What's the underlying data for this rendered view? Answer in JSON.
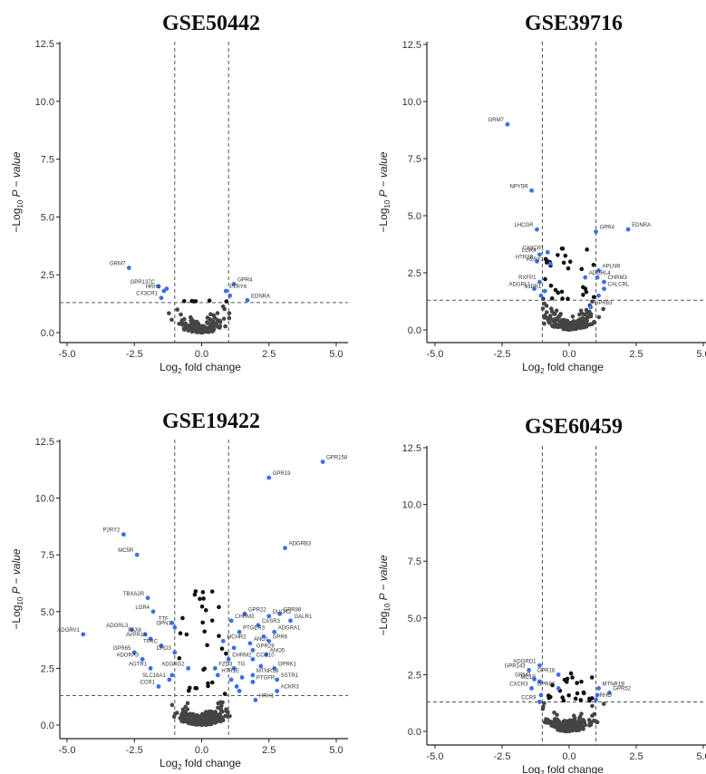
{
  "colors": {
    "significant": "#3d6ee6",
    "nonsignificant": "#454545",
    "background": "#ffffff"
  },
  "chart_data": [
    {
      "type": "scatter",
      "title": "GSE50442",
      "xlabel": "Log2 fold change",
      "ylabel": "-Log10 P-value",
      "xlim": [
        -6.2,
        5.4
      ],
      "ylim": [
        -0.5,
        12.8
      ],
      "xticks": [
        -5.0,
        -2.5,
        0.0,
        2.5,
        5.0
      ],
      "yticks": [
        0.0,
        2.5,
        5.0,
        7.5,
        10.0,
        12.5
      ],
      "thresholds": {
        "fc": [
          -1,
          1
        ],
        "p": 1.3
      },
      "labeled": [
        {
          "gene": "GRM7",
          "x": -2.7,
          "y": 2.8
        },
        {
          "gene": "GPR137C",
          "x": -1.6,
          "y": 2.0
        },
        {
          "gene": "HRH1",
          "x": -1.4,
          "y": 1.8
        },
        {
          "gene": "CX3CR1",
          "x": -1.5,
          "y": 1.5
        },
        {
          "gene": "GPR4",
          "x": 1.2,
          "y": 2.1
        },
        {
          "gene": "P2RY6",
          "x": 0.9,
          "y": 1.8
        },
        {
          "gene": "EDNRA",
          "x": 1.7,
          "y": 1.4
        }
      ],
      "unlabeled_significant": [
        {
          "x": -1.3,
          "y": 1.9
        },
        {
          "x": 1.05,
          "y": 1.6
        }
      ]
    },
    {
      "type": "scatter",
      "title": "GSE39716",
      "xlabel": "Log2 fold change",
      "ylabel": "-Log10 P-value",
      "xlim": [
        -6.2,
        5.4
      ],
      "ylim": [
        -0.5,
        12.8
      ],
      "xticks": [
        -5.0,
        -2.5,
        0.0,
        2.5,
        5.0
      ],
      "yticks": [
        0.0,
        2.5,
        5.0,
        7.5,
        10.0,
        12.5
      ],
      "thresholds": {
        "fc": [
          -1,
          1
        ],
        "p": 1.3
      },
      "labeled": [
        {
          "gene": "GRM7",
          "x": -2.3,
          "y": 9.0
        },
        {
          "gene": "NPY5R",
          "x": -1.4,
          "y": 6.1
        },
        {
          "gene": "LHCGR",
          "x": -1.2,
          "y": 4.4
        },
        {
          "gene": "GPR4",
          "x": 1.0,
          "y": 4.3
        },
        {
          "gene": "EDNRA",
          "x": 2.2,
          "y": 4.4
        },
        {
          "gene": "CX3CR1",
          "x": -0.8,
          "y": 3.4
        },
        {
          "gene": "LGR4",
          "x": -1.1,
          "y": 3.3
        },
        {
          "gene": "HTR2B",
          "x": -1.2,
          "y": 3.0
        },
        {
          "gene": "P2RY12",
          "x": -0.7,
          "y": 2.9
        },
        {
          "gene": "APLNR",
          "x": 1.1,
          "y": 2.6
        },
        {
          "gene": "ADGRL4",
          "x": 0.6,
          "y": 2.3
        },
        {
          "gene": "RXFP1",
          "x": -1.1,
          "y": 2.1
        },
        {
          "gene": "CHRM3",
          "x": 1.3,
          "y": 2.1
        },
        {
          "gene": "CALCRL",
          "x": 1.3,
          "y": 1.8
        },
        {
          "gene": "ADGRL1",
          "x": -1.3,
          "y": 1.8
        },
        {
          "gene": "S1PR1",
          "x": -0.9,
          "y": 1.7
        },
        {
          "gene": "GPR83",
          "x": 0.8,
          "y": 1.0
        }
      ],
      "unlabeled_significant": [
        {
          "x": 1.05,
          "y": 2.3
        },
        {
          "x": -1.05,
          "y": 1.5
        },
        {
          "x": 1.1,
          "y": 1.5
        }
      ]
    },
    {
      "type": "scatter",
      "title": "GSE19422",
      "xlabel": "Log2 fold change",
      "ylabel": "-Log10 P-value",
      "xlim": [
        -6.2,
        5.4
      ],
      "ylim": [
        -0.5,
        12.8
      ],
      "xticks": [
        -5.0,
        -2.5,
        0.0,
        2.5,
        5.0
      ],
      "yticks": [
        0.0,
        2.5,
        5.0,
        7.5,
        10.0,
        12.5
      ],
      "thresholds": {
        "fc": [
          -1,
          1
        ],
        "p": 1.3
      },
      "labeled": [
        {
          "gene": "GPR158",
          "x": 4.5,
          "y": 11.6
        },
        {
          "gene": "GPR19",
          "x": 2.5,
          "y": 10.9
        },
        {
          "gene": "P2RY2",
          "x": -2.9,
          "y": 8.4
        },
        {
          "gene": "ADGRB3",
          "x": 3.1,
          "y": 7.8
        },
        {
          "gene": "MC5R",
          "x": -2.4,
          "y": 7.5
        },
        {
          "gene": "TBXA2R",
          "x": -2.0,
          "y": 5.6
        },
        {
          "gene": "GPR88",
          "x": 2.9,
          "y": 4.9
        },
        {
          "gene": "DUOX2",
          "x": 2.5,
          "y": 4.8
        },
        {
          "gene": "GPR22",
          "x": 1.6,
          "y": 4.9
        },
        {
          "gene": "LGR4",
          "x": -1.8,
          "y": 5.0
        },
        {
          "gene": "GALR1",
          "x": 3.3,
          "y": 4.6
        },
        {
          "gene": "CASR3",
          "x": 2.1,
          "y": 4.4
        },
        {
          "gene": "CHRM3",
          "x": 1.1,
          "y": 4.6
        },
        {
          "gene": "TTF",
          "x": -1.1,
          "y": 4.5
        },
        {
          "gene": "ADGRL3",
          "x": -2.6,
          "y": 4.2
        },
        {
          "gene": "ADGRV1",
          "x": -4.4,
          "y": 4.0
        },
        {
          "gene": "OPN3",
          "x": -1.0,
          "y": 4.3
        },
        {
          "gene": "PTGER3",
          "x": 1.4,
          "y": 4.1
        },
        {
          "gene": "ADGRA1",
          "x": 2.7,
          "y": 4.1
        },
        {
          "gene": "PAX6",
          "x": -2.1,
          "y": 4.0
        },
        {
          "gene": "AVPR1A",
          "x": -1.9,
          "y": 3.8
        },
        {
          "gene": "GPR6",
          "x": 2.5,
          "y": 3.7
        },
        {
          "gene": "MCHR2",
          "x": 0.8,
          "y": 3.7
        },
        {
          "gene": "ANO1",
          "x": 1.8,
          "y": 3.6
        },
        {
          "gene": "TFRC",
          "x": -1.5,
          "y": 3.5
        },
        {
          "gene": "GPR29",
          "x": 1.9,
          "y": 3.3
        },
        {
          "gene": "GPR65",
          "x": -2.5,
          "y": 3.2
        },
        {
          "gene": "DRD3",
          "x": -1.0,
          "y": 3.2
        },
        {
          "gene": "ANO5",
          "x": 2.4,
          "y": 3.1
        },
        {
          "gene": "ADORA3",
          "x": -2.2,
          "y": 2.9
        },
        {
          "gene": "CHRM2",
          "x": 1.0,
          "y": 2.9
        },
        {
          "gene": "CCR10",
          "x": 1.9,
          "y": 2.9
        },
        {
          "gene": "AGTR1",
          "x": -1.9,
          "y": 2.5
        },
        {
          "gene": "ADGRG2",
          "x": -0.5,
          "y": 2.5
        },
        {
          "gene": "FZD3",
          "x": 0.5,
          "y": 2.5
        },
        {
          "gene": "TG",
          "x": 1.2,
          "y": 2.5
        },
        {
          "gene": "OPRK1",
          "x": 2.7,
          "y": 2.5
        },
        {
          "gene": "HTR1E",
          "x": 0.6,
          "y": 2.2
        },
        {
          "gene": "MTNR1B",
          "x": 1.9,
          "y": 2.2
        },
        {
          "gene": "SLC16A1",
          "x": -1.2,
          "y": 2.0
        },
        {
          "gene": "SSTR1",
          "x": 2.8,
          "y": 2.0
        },
        {
          "gene": "PTGFR",
          "x": 1.9,
          "y": 1.9
        },
        {
          "gene": "CCR1",
          "x": -1.6,
          "y": 1.7
        },
        {
          "gene": "ACKR3",
          "x": 2.8,
          "y": 1.5
        },
        {
          "gene": "HRH1",
          "x": 2.0,
          "y": 1.1
        }
      ],
      "unlabeled_significant": [
        {
          "x": 1.1,
          "y": 2.0
        },
        {
          "x": 1.3,
          "y": 1.7
        },
        {
          "x": 1.5,
          "y": 2.1
        },
        {
          "x": 1.2,
          "y": 3.4
        },
        {
          "x": -1.1,
          "y": 2.2
        },
        {
          "x": 2.2,
          "y": 2.6
        },
        {
          "x": 1.4,
          "y": 1.5
        },
        {
          "x": 2.3,
          "y": 3.9
        }
      ]
    },
    {
      "type": "scatter",
      "title": "GSE60459",
      "xlabel": "Log2 fold change",
      "ylabel": "-Log10 P-value",
      "xlim": [
        -6.2,
        5.4
      ],
      "ylim": [
        -0.5,
        12.8
      ],
      "xticks": [
        -5.0,
        -2.5,
        0.0,
        2.5,
        5.0
      ],
      "yticks": [
        0.0,
        2.5,
        5.0,
        7.5,
        10.0,
        12.5
      ],
      "thresholds": {
        "fc": [
          -1,
          1
        ],
        "p": 1.3
      },
      "labeled": [
        {
          "gene": "GPR143",
          "x": -1.5,
          "y": 2.7
        },
        {
          "gene": "ADGRD1",
          "x": -1.1,
          "y": 2.9
        },
        {
          "gene": "GPR18",
          "x": -0.4,
          "y": 2.5
        },
        {
          "gene": "GRM3",
          "x": -1.3,
          "y": 2.3
        },
        {
          "gene": "MC1R",
          "x": -1.1,
          "y": 2.2
        },
        {
          "gene": "CXCR3",
          "x": -1.4,
          "y": 1.9
        },
        {
          "gene": "GPR82",
          "x": -0.4,
          "y": 1.9
        },
        {
          "gene": "MTNR1B",
          "x": 1.1,
          "y": 1.9
        },
        {
          "gene": "GPR52",
          "x": 1.5,
          "y": 1.7
        },
        {
          "gene": "CCR9",
          "x": -1.1,
          "y": 1.3
        },
        {
          "gene": "RHO",
          "x": 1.0,
          "y": 1.4
        }
      ],
      "unlabeled_significant": [
        {
          "x": -1.05,
          "y": 1.6
        },
        {
          "x": 1.05,
          "y": 1.6
        }
      ]
    }
  ]
}
